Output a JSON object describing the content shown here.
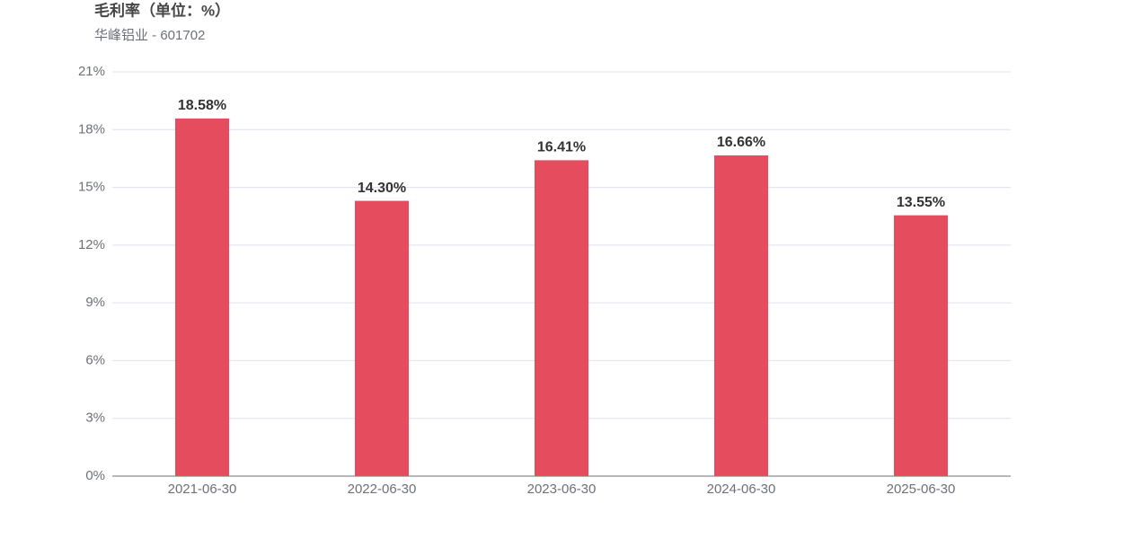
{
  "chart_data": {
    "type": "bar",
    "title": "毛利率（单位：%）",
    "subtitle": "华峰铝业 - 601702",
    "categories": [
      "2021-06-30",
      "2022-06-30",
      "2023-06-30",
      "2024-06-30",
      "2025-06-30"
    ],
    "values": [
      18.58,
      14.3,
      16.41,
      16.66,
      13.55
    ],
    "value_labels": [
      "18.58%",
      "14.30%",
      "16.41%",
      "16.66%",
      "13.55%"
    ],
    "color": "#e54c5e",
    "ylim": [
      0,
      21
    ],
    "yticks": [
      {
        "value": 0,
        "label": "0%"
      },
      {
        "value": 3,
        "label": "3%"
      },
      {
        "value": 6,
        "label": "6%"
      },
      {
        "value": 9,
        "label": "9%"
      },
      {
        "value": 12,
        "label": "12%"
      },
      {
        "value": 15,
        "label": "15%"
      },
      {
        "value": 18,
        "label": "18%"
      },
      {
        "value": 21,
        "label": "21%"
      }
    ],
    "grid": true
  }
}
